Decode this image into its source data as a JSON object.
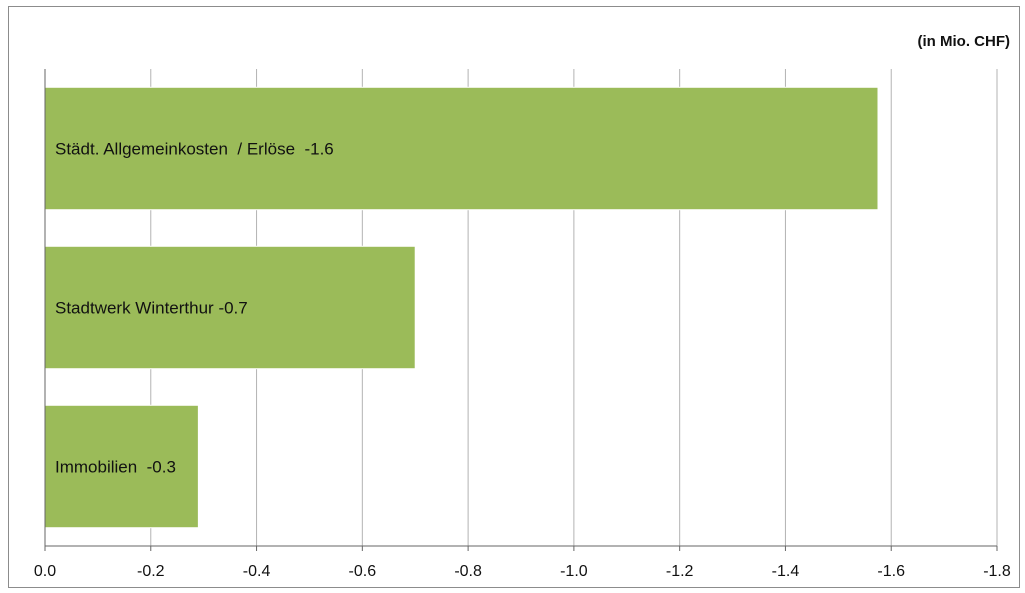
{
  "chart_data": {
    "type": "bar",
    "orientation": "horizontal",
    "unit_label": "(in Mio. CHF)",
    "categories": [
      "Städt. Allgemeinkosten  / Erlöse",
      "Stadtwerk Winterthur",
      "Immobilien"
    ],
    "values": [
      -1.575,
      -0.7,
      -0.29
    ],
    "data_labels": [
      "Städt. Allgemeinkosten  / Erlöse  -1.6",
      "Stadtwerk Winterthur -0.7",
      "Immobilien  -0.3"
    ],
    "xlim": [
      0,
      -1.8
    ],
    "xticks": [
      0.0,
      -0.2,
      -0.4,
      -0.6,
      -0.8,
      -1.0,
      -1.2,
      -1.4,
      -1.6,
      -1.8
    ],
    "xtick_labels": [
      "0.0",
      "-0.2",
      "-0.4",
      "-0.6",
      "-0.8",
      "-1.0",
      "-1.2",
      "-1.4",
      "-1.6",
      "-1.8"
    ],
    "grid": true,
    "legend": "none",
    "title": "",
    "xlabel": "",
    "ylabel": "",
    "colors": {
      "bar": "#9bbb59",
      "bar_edge": "#ffffff",
      "grid": "#b3b3b3",
      "axis": "#666666"
    }
  }
}
